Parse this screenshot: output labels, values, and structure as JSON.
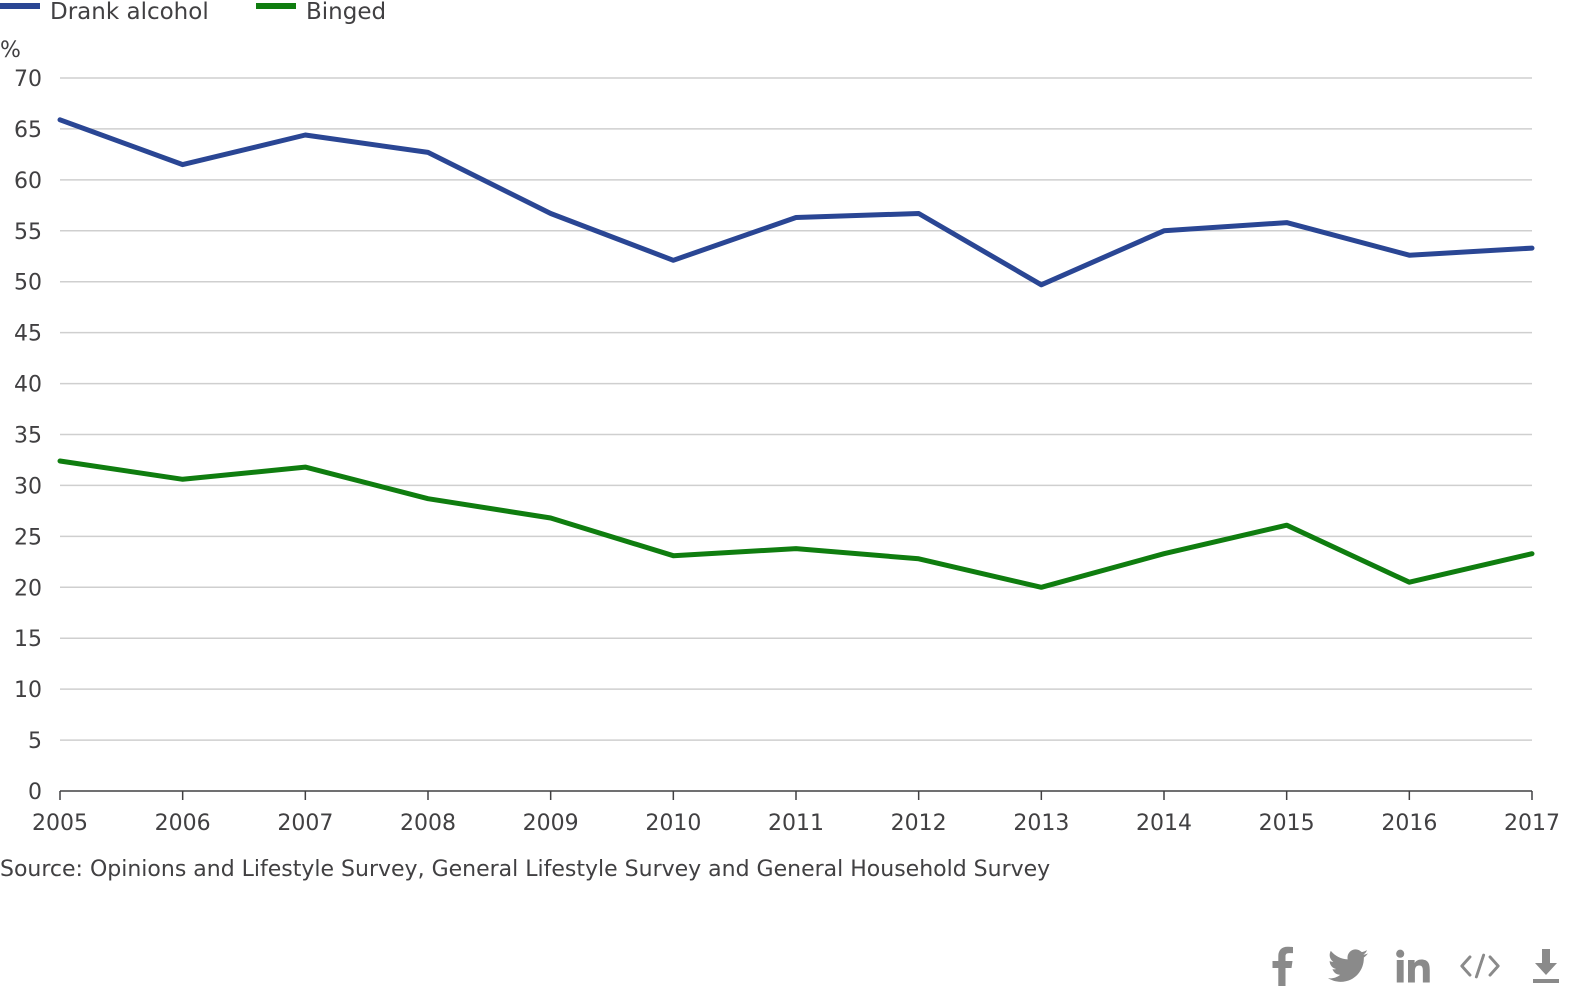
{
  "chart_data": {
    "type": "line",
    "ylabel": "%",
    "ylim": [
      0,
      70
    ],
    "yticks": [
      0,
      5,
      10,
      15,
      20,
      25,
      30,
      35,
      40,
      45,
      50,
      55,
      60,
      65,
      70
    ],
    "x": [
      "2005",
      "2006",
      "2007",
      "2008",
      "2009",
      "2010",
      "2011",
      "2012",
      "2013",
      "2014",
      "2015",
      "2016",
      "2017"
    ],
    "series": [
      {
        "name": "Drank alcohol",
        "color": "#2a4694",
        "values": [
          65.9,
          61.5,
          64.4,
          62.7,
          56.7,
          52.1,
          56.3,
          56.7,
          49.7,
          55.0,
          55.8,
          52.6,
          53.3
        ]
      },
      {
        "name": "Binged",
        "color": "#0f7d0f",
        "values": [
          32.4,
          30.6,
          31.8,
          28.7,
          26.8,
          23.1,
          23.8,
          22.8,
          20.0,
          23.3,
          26.1,
          20.5,
          23.3
        ]
      }
    ],
    "grid": true,
    "legend": "top-left"
  },
  "source": "Source: Opinions and Lifestyle Survey, General Lifestyle Survey and General Household Survey",
  "share": [
    {
      "name": "facebook-icon"
    },
    {
      "name": "twitter-icon"
    },
    {
      "name": "linkedin-icon"
    },
    {
      "name": "embed-icon"
    },
    {
      "name": "download-icon"
    }
  ]
}
